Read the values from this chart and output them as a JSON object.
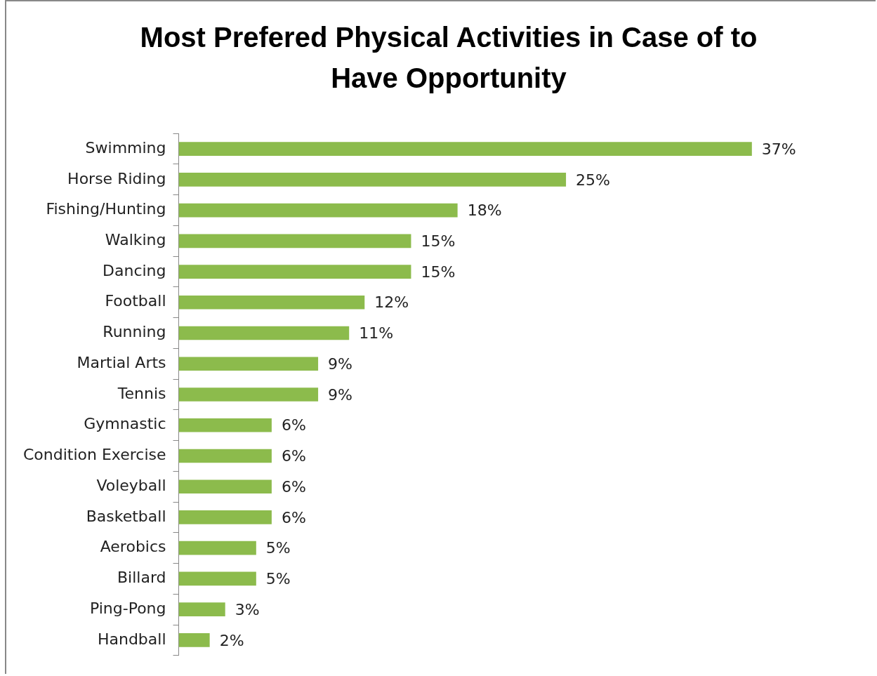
{
  "chart_data": {
    "type": "bar",
    "orientation": "horizontal",
    "title": "Most Prefered Physical Activities in Case of to Have Opportunity",
    "categories": [
      "Swimming",
      "Horse Riding",
      "Fishing/Hunting",
      "Walking",
      "Dancing",
      "Football",
      "Running",
      "Martial Arts",
      "Tennis",
      "Gymnastic",
      "Condition Exercise",
      "Voleyball",
      "Basketball",
      "Aerobics",
      "Billard",
      "Ping-Pong",
      "Handball"
    ],
    "values": [
      37,
      25,
      18,
      15,
      15,
      12,
      11,
      9,
      9,
      6,
      6,
      6,
      6,
      5,
      5,
      3,
      2
    ],
    "value_labels": [
      "37%",
      "25%",
      "18%",
      "15%",
      "15%",
      "12%",
      "11%",
      "9%",
      "9%",
      "6%",
      "6%",
      "6%",
      "6%",
      "5%",
      "5%",
      "3%",
      "2%"
    ],
    "color": "#8cbb4c",
    "legend": false,
    "tick_labels": "y"
  }
}
